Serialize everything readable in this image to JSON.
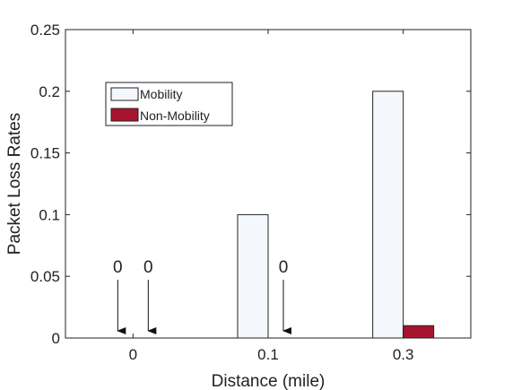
{
  "chart_data": {
    "type": "bar",
    "title": "",
    "xlabel": "Distance (mile)",
    "ylabel": "Packet Loss Rates",
    "categories": [
      "0",
      "0.1",
      "0.3"
    ],
    "ylim": [
      0,
      0.25
    ],
    "yticks": [
      "0",
      "0.05",
      "0.1",
      "0.15",
      "0.2",
      "0.25"
    ],
    "grid": false,
    "legend_position": "top-left",
    "series": [
      {
        "name": "Mobility",
        "values": [
          0,
          0.1,
          0.2
        ],
        "color": "#f4f8fc"
      },
      {
        "name": "Non-Mobility",
        "values": [
          0,
          0,
          0.01
        ],
        "color": "#a8142f"
      }
    ],
    "annotations": [
      {
        "text": "0",
        "category": "0",
        "series": "Mobility"
      },
      {
        "text": "0",
        "category": "0",
        "series": "Non-Mobility"
      },
      {
        "text": "0",
        "category": "0.1",
        "series": "Non-Mobility"
      }
    ]
  }
}
